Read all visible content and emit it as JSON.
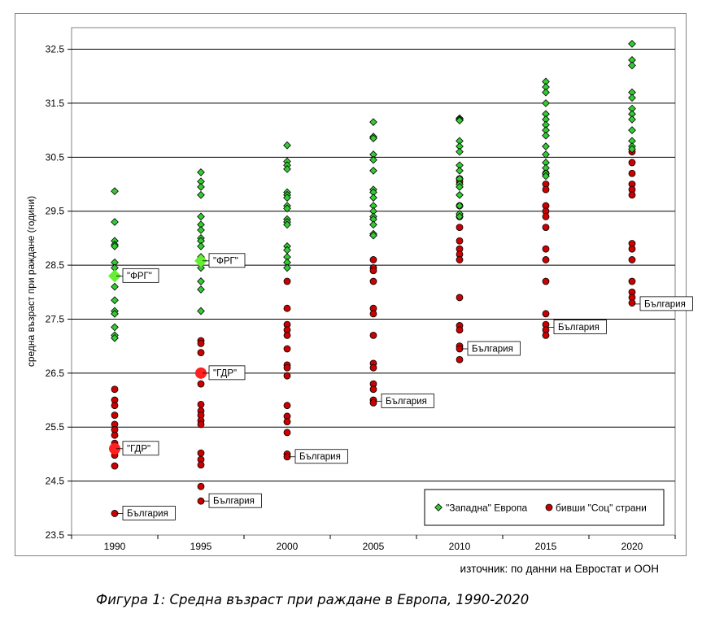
{
  "chart_data": {
    "type": "scatter",
    "title": "",
    "ylabel": "средна възраст при раждане (години)",
    "xlabel": "",
    "ylim": [
      23.5,
      32.9
    ],
    "yticks": [
      23.5,
      24.5,
      25.5,
      26.5,
      27.5,
      28.5,
      29.5,
      30.5,
      31.5,
      32.5
    ],
    "ytick_labels": [
      "23.5",
      "24.5",
      "25.5",
      "26.5",
      "27.5",
      "28.5",
      "29.5",
      "30.5",
      "31.5",
      "32.5"
    ],
    "categories": [
      "1990",
      "1995",
      "2000",
      "2005",
      "2010",
      "2015",
      "2020"
    ],
    "grid": "horizontal",
    "legend_position": "bottom-right",
    "series": [
      {
        "name": "\"Западна\" Европа",
        "marker": "diamond",
        "color": "#33cc33",
        "values": [
          [
            29.87,
            29.3,
            28.95,
            28.88,
            28.85,
            28.55,
            28.45,
            28.3,
            28.1,
            27.85,
            27.65,
            27.6,
            27.35,
            27.2,
            27.15
          ],
          [
            30.22,
            30.05,
            29.95,
            29.8,
            29.4,
            29.25,
            29.15,
            29.0,
            28.95,
            28.85,
            28.65,
            28.55,
            28.45,
            28.2,
            28.05,
            27.65
          ],
          [
            30.72,
            30.42,
            30.35,
            30.28,
            29.85,
            29.8,
            29.75,
            29.6,
            29.55,
            29.35,
            29.3,
            29.25,
            28.85,
            28.78,
            28.65,
            28.55,
            28.45
          ],
          [
            31.15,
            30.88,
            30.85,
            30.55,
            30.45,
            30.25,
            29.9,
            29.85,
            29.75,
            29.6,
            29.5,
            29.4,
            29.35,
            29.25,
            29.08,
            29.05
          ],
          [
            31.22,
            31.2,
            31.18,
            30.8,
            30.7,
            30.6,
            30.35,
            30.25,
            30.1,
            30.0,
            29.95,
            29.8,
            29.6,
            29.45,
            29.4
          ],
          [
            31.9,
            31.8,
            31.7,
            31.5,
            31.3,
            31.2,
            31.1,
            31.0,
            30.9,
            30.7,
            30.55,
            30.4,
            30.3,
            30.2,
            30.15
          ],
          [
            32.6,
            32.3,
            32.2,
            31.7,
            31.6,
            31.4,
            31.3,
            31.2,
            31.0,
            30.8,
            30.7,
            30.65
          ]
        ]
      },
      {
        "name": "бивши \"Соц\" страни",
        "marker": "circle",
        "color": "#cc0000",
        "values": [
          [
            26.2,
            26.0,
            25.9,
            25.72,
            25.55,
            25.45,
            25.35,
            25.2,
            25.15,
            25.05,
            24.98,
            24.78,
            23.9
          ],
          [
            27.1,
            27.05,
            26.88,
            26.3,
            25.92,
            25.8,
            25.72,
            25.62,
            25.55,
            25.02,
            24.9,
            24.8,
            24.4,
            24.13
          ],
          [
            28.2,
            27.7,
            27.4,
            27.3,
            27.2,
            26.95,
            26.65,
            26.6,
            26.45,
            25.9,
            25.7,
            25.6,
            25.4,
            25.0,
            24.95
          ],
          [
            28.6,
            28.45,
            28.4,
            28.2,
            27.7,
            27.6,
            27.2,
            26.68,
            26.6,
            26.3,
            26.2,
            26.0,
            25.95
          ],
          [
            30.1,
            30.05,
            29.6,
            29.4,
            29.2,
            28.95,
            28.8,
            28.7,
            28.6,
            27.9,
            27.38,
            27.3,
            27.0,
            26.95,
            26.75
          ],
          [
            30.2,
            30.0,
            29.9,
            29.6,
            29.5,
            29.4,
            29.2,
            28.8,
            28.6,
            28.2,
            27.6,
            27.4,
            27.3,
            27.2
          ],
          [
            30.6,
            30.4,
            30.2,
            30.0,
            29.9,
            29.8,
            28.9,
            28.8,
            28.6,
            28.2,
            28.0,
            27.9,
            27.8
          ]
        ]
      }
    ],
    "highlights": [
      {
        "series": 0,
        "category": "1990",
        "value": 28.3,
        "label": "\"ФРГ\""
      },
      {
        "series": 0,
        "category": "1995",
        "value": 28.58,
        "label": "\"ФРГ\""
      },
      {
        "series": 1,
        "category": "1995",
        "value": 26.5,
        "label": "\"ГДР\""
      },
      {
        "series": 1,
        "category": "1990",
        "value": 25.1,
        "label": "\"ГДР\""
      }
    ],
    "annotations": [
      {
        "category": "1990",
        "value": 23.9,
        "label": "България"
      },
      {
        "category": "1995",
        "value": 24.13,
        "label": "България"
      },
      {
        "category": "2000",
        "value": 24.95,
        "label": "България"
      },
      {
        "category": "2005",
        "value": 25.98,
        "label": "България"
      },
      {
        "category": "2010",
        "value": 26.95,
        "label": "България"
      },
      {
        "category": "2015",
        "value": 27.35,
        "label": "България"
      },
      {
        "category": "2020",
        "value": 27.78,
        "label": "България"
      }
    ]
  },
  "source_text": "източник: по данни на Евростат и ООН",
  "caption": "Фигура 1: Средна възраст при раждане в Европа, 1990-2020"
}
